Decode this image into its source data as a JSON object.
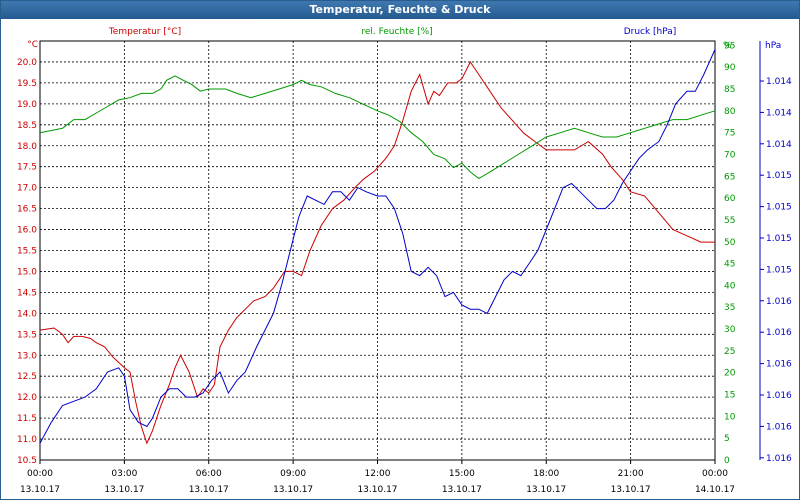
{
  "window": {
    "title": "Temperatur, Feuchte & Druck"
  },
  "chart_data": {
    "type": "line",
    "title": "Temperatur, Feuchte & Druck",
    "grid": true,
    "axes": {
      "temperature": {
        "unit": "°C",
        "range": [
          10.5,
          20.5
        ],
        "ticks": [
          "10.5",
          "11.0",
          "11.5",
          "12.0",
          "12.5",
          "13.0",
          "13.5",
          "14.0",
          "14.5",
          "15.0",
          "15.5",
          "16.0",
          "16.5",
          "17.0",
          "17.5",
          "18.0",
          "18.5",
          "19.0",
          "19.5",
          "20.0"
        ],
        "color": "#cc0000"
      },
      "humidity": {
        "unit": "%",
        "range": [
          0,
          96
        ],
        "ticks": [
          "0",
          "5",
          "10",
          "15",
          "20",
          "25",
          "30",
          "35",
          "40",
          "45",
          "50",
          "55",
          "60",
          "65",
          "70",
          "75",
          "80",
          "85",
          "90",
          "95"
        ],
        "top_label": "%",
        "color": "#009900"
      },
      "pressure": {
        "unit": "hPa",
        "ticks": [
          "1.014",
          "1.014",
          "1.014",
          "1.015",
          "1.015",
          "1.015",
          "1.015",
          "1.016",
          "1.016",
          "1.016",
          "1.016",
          "1.016",
          "1.016"
        ],
        "color": "#0000cc"
      },
      "x": {
        "times": [
          "00:00",
          "03:00",
          "06:00",
          "09:00",
          "12:00",
          "15:00",
          "18:00",
          "21:00",
          "00:00"
        ],
        "dates": [
          "13.10.17",
          "13.10.17",
          "13.10.17",
          "13.10.17",
          "13.10.17",
          "13.10.17",
          "13.10.17",
          "13.10.17",
          "14.10.17"
        ],
        "range_hours": [
          0,
          24
        ]
      }
    },
    "legend": {
      "temperature": "Temperatur [°C]",
      "humidity": "rel. Feuchte [%]",
      "pressure": "Druck [hPa]"
    },
    "series": [
      {
        "name": "Temperatur [°C]",
        "axis": "temperature",
        "color": "#cc0000",
        "points": [
          [
            0,
            13.6
          ],
          [
            0.5,
            13.65
          ],
          [
            0.8,
            13.5
          ],
          [
            1.0,
            13.3
          ],
          [
            1.2,
            13.45
          ],
          [
            1.5,
            13.45
          ],
          [
            1.8,
            13.4
          ],
          [
            2.0,
            13.3
          ],
          [
            2.3,
            13.2
          ],
          [
            2.6,
            12.95
          ],
          [
            3.0,
            12.7
          ],
          [
            3.2,
            12.6
          ],
          [
            3.4,
            11.9
          ],
          [
            3.6,
            11.3
          ],
          [
            3.8,
            10.9
          ],
          [
            4.0,
            11.2
          ],
          [
            4.3,
            11.8
          ],
          [
            4.6,
            12.3
          ],
          [
            4.8,
            12.7
          ],
          [
            5.0,
            13.0
          ],
          [
            5.3,
            12.6
          ],
          [
            5.6,
            12.0
          ],
          [
            5.8,
            12.2
          ],
          [
            6.0,
            12.1
          ],
          [
            6.2,
            12.3
          ],
          [
            6.4,
            13.2
          ],
          [
            6.7,
            13.6
          ],
          [
            7.0,
            13.9
          ],
          [
            7.3,
            14.1
          ],
          [
            7.6,
            14.3
          ],
          [
            8.0,
            14.4
          ],
          [
            8.3,
            14.6
          ],
          [
            8.7,
            15.0
          ],
          [
            9.0,
            15.0
          ],
          [
            9.3,
            14.9
          ],
          [
            9.6,
            15.5
          ],
          [
            10.0,
            16.1
          ],
          [
            10.4,
            16.5
          ],
          [
            10.8,
            16.7
          ],
          [
            11.2,
            17.0
          ],
          [
            11.5,
            17.2
          ],
          [
            11.9,
            17.4
          ],
          [
            12.3,
            17.7
          ],
          [
            12.6,
            18.0
          ],
          [
            12.9,
            18.6
          ],
          [
            13.2,
            19.3
          ],
          [
            13.5,
            19.7
          ],
          [
            13.8,
            19.0
          ],
          [
            14.0,
            19.3
          ],
          [
            14.2,
            19.2
          ],
          [
            14.5,
            19.5
          ],
          [
            14.8,
            19.5
          ],
          [
            15.0,
            19.6
          ],
          [
            15.3,
            20.0
          ],
          [
            15.6,
            19.7
          ],
          [
            16.0,
            19.3
          ],
          [
            16.4,
            18.9
          ],
          [
            16.8,
            18.6
          ],
          [
            17.2,
            18.3
          ],
          [
            17.6,
            18.1
          ],
          [
            18.0,
            17.9
          ],
          [
            18.5,
            17.9
          ],
          [
            19.0,
            17.9
          ],
          [
            19.5,
            18.1
          ],
          [
            20.0,
            17.8
          ],
          [
            20.3,
            17.5
          ],
          [
            20.7,
            17.2
          ],
          [
            21.0,
            16.9
          ],
          [
            21.5,
            16.8
          ],
          [
            22.0,
            16.4
          ],
          [
            22.5,
            16.0
          ],
          [
            23.0,
            15.85
          ],
          [
            23.5,
            15.7
          ],
          [
            24.0,
            15.7
          ]
        ]
      },
      {
        "name": "rel. Feuchte [%]",
        "axis": "humidity",
        "color": "#009900",
        "points": [
          [
            0,
            75
          ],
          [
            0.4,
            75.5
          ],
          [
            0.8,
            76
          ],
          [
            1.2,
            78
          ],
          [
            1.6,
            78
          ],
          [
            2.0,
            79.5
          ],
          [
            2.4,
            81
          ],
          [
            2.8,
            82.5
          ],
          [
            3.2,
            83
          ],
          [
            3.6,
            84
          ],
          [
            4.0,
            84
          ],
          [
            4.3,
            85
          ],
          [
            4.5,
            87
          ],
          [
            4.8,
            88
          ],
          [
            5.1,
            87
          ],
          [
            5.4,
            86
          ],
          [
            5.7,
            84.5
          ],
          [
            6.0,
            85
          ],
          [
            6.3,
            85
          ],
          [
            6.6,
            85
          ],
          [
            7.0,
            84
          ],
          [
            7.5,
            83
          ],
          [
            8.0,
            84
          ],
          [
            8.5,
            85
          ],
          [
            9.0,
            86
          ],
          [
            9.3,
            87
          ],
          [
            9.6,
            86
          ],
          [
            10.0,
            85.5
          ],
          [
            10.5,
            84
          ],
          [
            11.0,
            83
          ],
          [
            11.5,
            81.5
          ],
          [
            12.0,
            80
          ],
          [
            12.4,
            79
          ],
          [
            12.8,
            77.5
          ],
          [
            13.2,
            75
          ],
          [
            13.6,
            73
          ],
          [
            14.0,
            70
          ],
          [
            14.4,
            69
          ],
          [
            14.7,
            67
          ],
          [
            15.0,
            68
          ],
          [
            15.3,
            66
          ],
          [
            15.6,
            64.5
          ],
          [
            16.0,
            66
          ],
          [
            16.5,
            68
          ],
          [
            17.0,
            70
          ],
          [
            17.5,
            72
          ],
          [
            18.0,
            74
          ],
          [
            18.5,
            75
          ],
          [
            19.0,
            76
          ],
          [
            19.5,
            75
          ],
          [
            20.0,
            74
          ],
          [
            20.5,
            74
          ],
          [
            21.0,
            75
          ],
          [
            21.5,
            76
          ],
          [
            22.0,
            77
          ],
          [
            22.5,
            78
          ],
          [
            23.0,
            78
          ],
          [
            23.5,
            79
          ],
          [
            24.0,
            80
          ]
        ]
      },
      {
        "name": "Druck [hPa]",
        "axis": "pressure",
        "color": "#0000cc",
        "points": [
          [
            0,
            4
          ],
          [
            0.4,
            9
          ],
          [
            0.8,
            13
          ],
          [
            1.2,
            14
          ],
          [
            1.6,
            15
          ],
          [
            2.0,
            17
          ],
          [
            2.4,
            21
          ],
          [
            2.8,
            22
          ],
          [
            3.0,
            20
          ],
          [
            3.2,
            12
          ],
          [
            3.5,
            9
          ],
          [
            3.8,
            8
          ],
          [
            4.0,
            10
          ],
          [
            4.3,
            15
          ],
          [
            4.6,
            17
          ],
          [
            4.9,
            17
          ],
          [
            5.2,
            15
          ],
          [
            5.5,
            15
          ],
          [
            5.8,
            16
          ],
          [
            6.1,
            19
          ],
          [
            6.4,
            21
          ],
          [
            6.7,
            16
          ],
          [
            7.0,
            19
          ],
          [
            7.3,
            21
          ],
          [
            7.7,
            27
          ],
          [
            8.0,
            31
          ],
          [
            8.3,
            35
          ],
          [
            8.6,
            42
          ],
          [
            8.9,
            50
          ],
          [
            9.2,
            58
          ],
          [
            9.5,
            63
          ],
          [
            9.8,
            62
          ],
          [
            10.1,
            61
          ],
          [
            10.4,
            64
          ],
          [
            10.7,
            64
          ],
          [
            11.0,
            62
          ],
          [
            11.3,
            65
          ],
          [
            11.6,
            64
          ],
          [
            12.0,
            63
          ],
          [
            12.3,
            63
          ],
          [
            12.6,
            60
          ],
          [
            12.9,
            54
          ],
          [
            13.2,
            45
          ],
          [
            13.5,
            44
          ],
          [
            13.8,
            46
          ],
          [
            14.1,
            44
          ],
          [
            14.4,
            39
          ],
          [
            14.7,
            40
          ],
          [
            15.0,
            37
          ],
          [
            15.3,
            36
          ],
          [
            15.6,
            36
          ],
          [
            15.9,
            35
          ],
          [
            16.2,
            39
          ],
          [
            16.5,
            43
          ],
          [
            16.8,
            45
          ],
          [
            17.1,
            44
          ],
          [
            17.4,
            47
          ],
          [
            17.7,
            50
          ],
          [
            18.0,
            55
          ],
          [
            18.3,
            60
          ],
          [
            18.6,
            65
          ],
          [
            18.9,
            66
          ],
          [
            19.2,
            64
          ],
          [
            19.5,
            62
          ],
          [
            19.8,
            60
          ],
          [
            20.1,
            60
          ],
          [
            20.4,
            62
          ],
          [
            20.7,
            66
          ],
          [
            21.0,
            69
          ],
          [
            21.3,
            72
          ],
          [
            21.6,
            74
          ],
          [
            22.0,
            76
          ],
          [
            22.3,
            80
          ],
          [
            22.6,
            85
          ],
          [
            23.0,
            88
          ],
          [
            23.3,
            88
          ],
          [
            23.6,
            92
          ],
          [
            24.0,
            98
          ]
        ]
      }
    ]
  }
}
